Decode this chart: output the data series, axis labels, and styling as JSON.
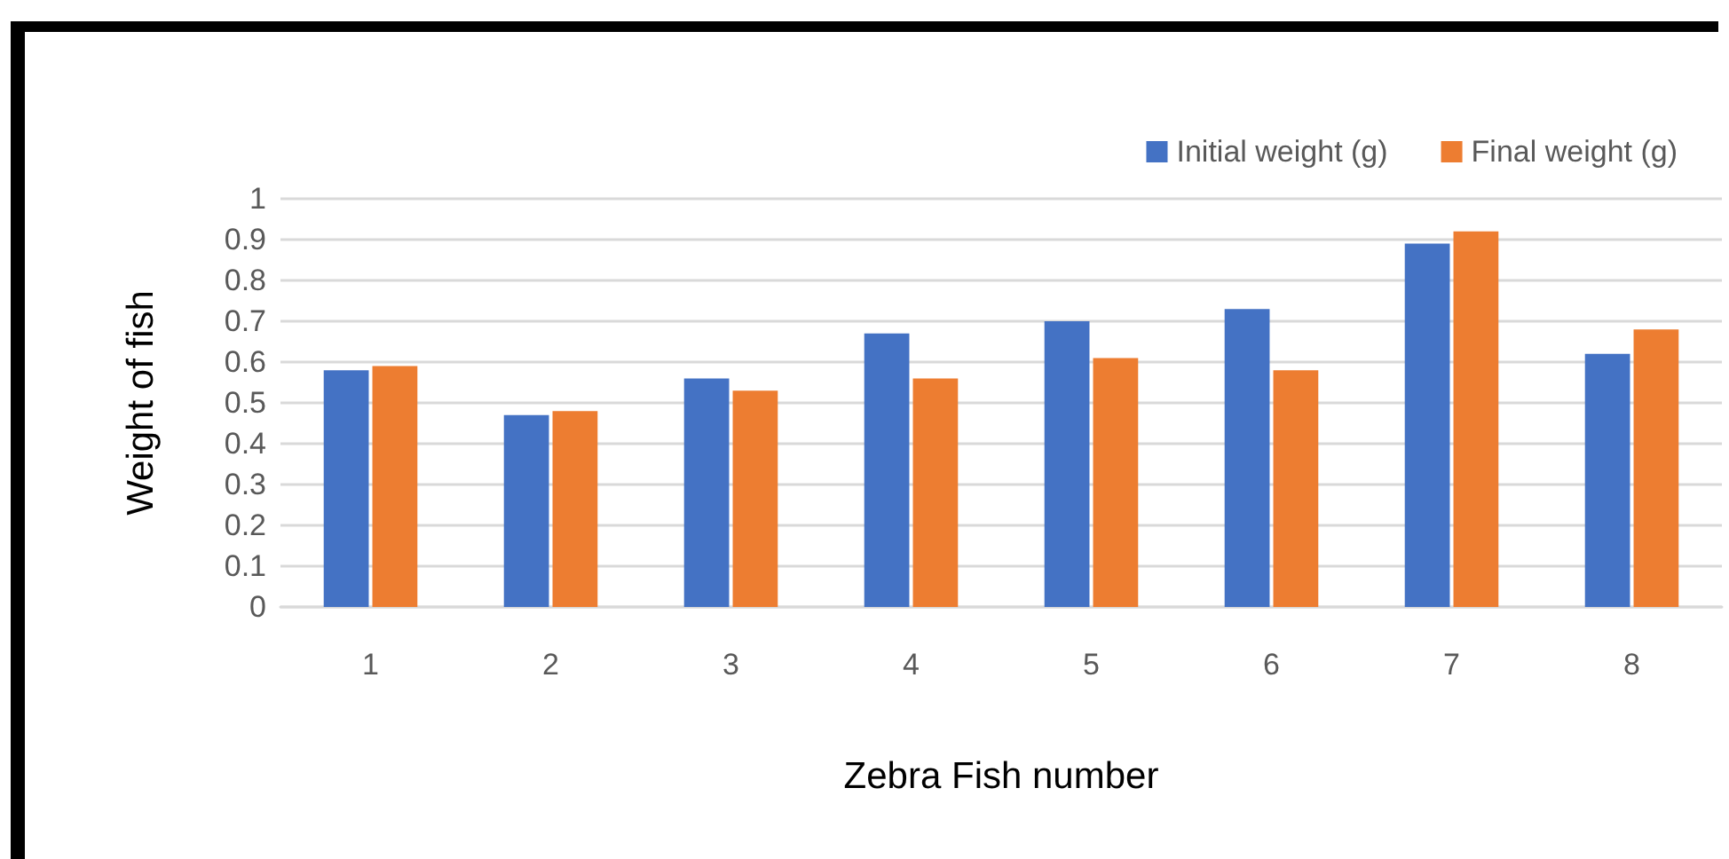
{
  "chart_data": {
    "type": "bar",
    "xlabel": "Zebra Fish number",
    "ylabel": "Weight of fish",
    "categories": [
      "1",
      "2",
      "3",
      "4",
      "5",
      "6",
      "7",
      "8"
    ],
    "series": [
      {
        "name": "Initial weight (g)",
        "color": "#4472c4",
        "values": [
          0.58,
          0.47,
          0.56,
          0.67,
          0.7,
          0.73,
          0.89,
          0.62
        ]
      },
      {
        "name": "Final weight (g)",
        "color": "#ed7d31",
        "values": [
          0.59,
          0.48,
          0.53,
          0.56,
          0.61,
          0.58,
          0.92,
          0.68
        ]
      }
    ],
    "ylim": [
      0,
      1
    ],
    "yticks": [
      0,
      0.1,
      0.2,
      0.3,
      0.4,
      0.5,
      0.6,
      0.7,
      0.8,
      0.9,
      1
    ],
    "grid": "y",
    "legend": "top right"
  }
}
